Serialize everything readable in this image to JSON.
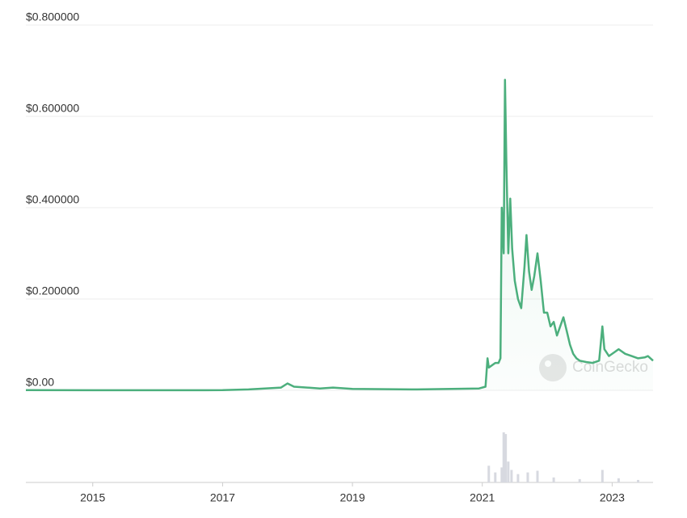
{
  "chart_data": {
    "type": "line",
    "x": [
      2013.97,
      2015,
      2016,
      2017,
      2017.4,
      2017.9,
      2018.0,
      2018.1,
      2018.5,
      2018.7,
      2019,
      2020,
      2020.95,
      2021.05,
      2021.08,
      2021.1,
      2021.2,
      2021.25,
      2021.28,
      2021.3,
      2021.33,
      2021.35,
      2021.37,
      2021.4,
      2021.43,
      2021.46,
      2021.5,
      2021.55,
      2021.6,
      2021.65,
      2021.68,
      2021.72,
      2021.76,
      2021.8,
      2021.85,
      2021.9,
      2021.95,
      2022.0,
      2022.05,
      2022.1,
      2022.15,
      2022.2,
      2022.25,
      2022.3,
      2022.35,
      2022.4,
      2022.45,
      2022.5,
      2022.6,
      2022.7,
      2022.8,
      2022.85,
      2022.88,
      2022.95,
      2023.05,
      2023.1,
      2023.2,
      2023.3,
      2023.4,
      2023.5,
      2023.55,
      2023.63
    ],
    "series": [
      {
        "color": "#4caf7d",
        "values": [
          0.0003,
          0.0002,
          0.0002,
          0.0003,
          0.002,
          0.006,
          0.015,
          0.008,
          0.004,
          0.006,
          0.003,
          0.002,
          0.004,
          0.008,
          0.07,
          0.05,
          0.06,
          0.06,
          0.07,
          0.4,
          0.3,
          0.68,
          0.5,
          0.3,
          0.42,
          0.31,
          0.24,
          0.2,
          0.18,
          0.27,
          0.34,
          0.26,
          0.22,
          0.25,
          0.3,
          0.24,
          0.17,
          0.17,
          0.14,
          0.15,
          0.12,
          0.14,
          0.16,
          0.13,
          0.1,
          0.08,
          0.07,
          0.065,
          0.062,
          0.06,
          0.065,
          0.14,
          0.09,
          0.075,
          0.085,
          0.09,
          0.08,
          0.075,
          0.07,
          0.072,
          0.075,
          0.065
        ]
      }
    ],
    "volume": {
      "x": [
        2021.1,
        2021.2,
        2021.3,
        2021.33,
        2021.36,
        2021.4,
        2021.45,
        2021.55,
        2021.7,
        2021.85,
        2022.1,
        2022.5,
        2022.85,
        2023.1,
        2023.4
      ],
      "values": [
        20,
        12,
        18,
        60,
        58,
        25,
        15,
        10,
        12,
        14,
        6,
        4,
        15,
        5,
        3
      ]
    },
    "xlim": [
      2013.97,
      2023.63
    ],
    "xticks": [
      2015,
      2017,
      2019,
      2021,
      2023
    ],
    "ylim": [
      0,
      0.8
    ],
    "yticks": [
      {
        "value": 0,
        "label": "$0.00"
      },
      {
        "value": 0.2,
        "label": "$0.200000"
      },
      {
        "value": 0.4,
        "label": "$0.400000"
      },
      {
        "value": 0.6,
        "label": "$0.600000"
      },
      {
        "value": 0.8,
        "label": "$0.800000"
      }
    ],
    "grid": true,
    "watermark": "CoinGecko"
  }
}
